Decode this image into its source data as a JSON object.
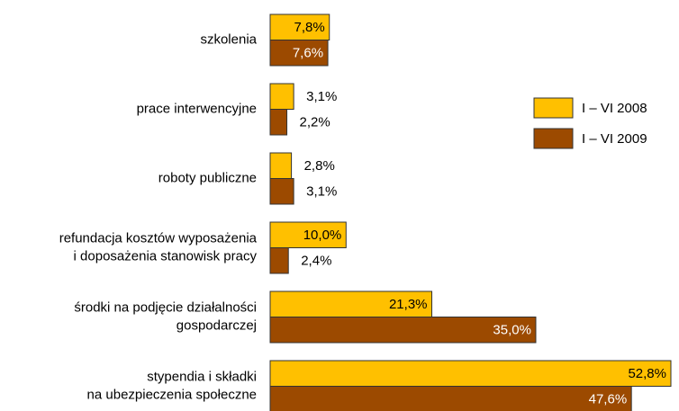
{
  "chart_data": {
    "type": "bar",
    "orientation": "horizontal",
    "categories": [
      [
        "szkolenia"
      ],
      [
        "prace interwencyjne"
      ],
      [
        "roboty publiczne"
      ],
      [
        "refundacja kosztów wyposażenia",
        "i doposażenia stanowisk pracy"
      ],
      [
        "środki na podjęcie działalności",
        "gospodarczej"
      ],
      [
        "stypendia i składki",
        "na ubezpieczenia społeczne"
      ]
    ],
    "series": [
      {
        "name": "I – VI 2008",
        "color": "#ffc000",
        "values": [
          7.8,
          3.1,
          2.8,
          10.0,
          21.3,
          52.8
        ],
        "value_labels": [
          "7,8%",
          "3,1%",
          "2,8%",
          "10,0%",
          "21,3%",
          "52,8%"
        ]
      },
      {
        "name": "I – VI 2009",
        "color": "#9c4a00",
        "values": [
          7.6,
          2.2,
          3.1,
          2.4,
          35.0,
          47.6
        ],
        "value_labels": [
          "7,6%",
          "2,2%",
          "3,1%",
          "2,4%",
          "35,0%",
          "47,6%"
        ]
      }
    ],
    "legend": "right"
  }
}
